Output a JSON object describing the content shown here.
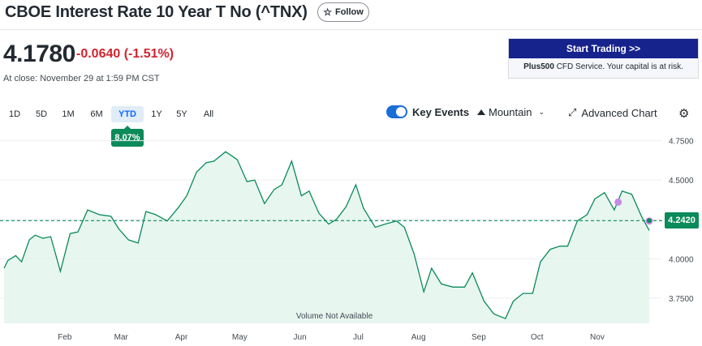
{
  "header": {
    "title": "CBOE Interest Rate 10 Year T No (^TNX)",
    "follow_label": "Follow",
    "price": "4.1780",
    "change": "-0.0640 (-1.51%)",
    "close_note": "At close: November 29 at 1:59 PM CST"
  },
  "ad": {
    "button_label": "Start Trading >>",
    "brand": "Plus500",
    "text": " CFD Service. Your capital is at risk."
  },
  "ranges": [
    {
      "label": "1D",
      "active": false
    },
    {
      "label": "5D",
      "active": false
    },
    {
      "label": "1M",
      "active": false
    },
    {
      "label": "6M",
      "active": false
    },
    {
      "label": "YTD",
      "active": true
    },
    {
      "label": "1Y",
      "active": false
    },
    {
      "label": "5Y",
      "active": false
    },
    {
      "label": "All",
      "active": false
    }
  ],
  "ytd_badge": "8.07%",
  "toolbar": {
    "key_events_label": "Key Events",
    "key_events_on": true,
    "chart_type_label": "Mountain",
    "advanced_label": "Advanced Chart"
  },
  "icons": {
    "follow": "star-icon",
    "chart_type": "mountain-icon",
    "advanced": "expand-icon",
    "settings": "gear-icon"
  },
  "colors": {
    "line": "#0b8a5a",
    "fill": "#e3f4ec",
    "negative": "#d1242f",
    "event_marker": "#c58ae6",
    "ad_button": "#17238c"
  },
  "chart_data": {
    "type": "area",
    "xlabel": "",
    "ylabel": "",
    "x_ticks": [
      "Feb",
      "Mar",
      "Apr",
      "May",
      "Jun",
      "Jul",
      "Aug",
      "Sep",
      "Oct",
      "Nov"
    ],
    "y_ticks": [
      4.75,
      4.5,
      4.25,
      4.0,
      3.75
    ],
    "y_tick_labels": [
      "4.7500",
      "4.5000",
      "4.2500",
      "4.0000",
      "3.7500"
    ],
    "ylim": [
      3.59,
      4.82
    ],
    "reference_value": 4.242,
    "reference_label": "4.2420",
    "note": "Volume Not Available",
    "grid": true,
    "series": [
      {
        "dates": [
          "2024-01-02",
          "2024-01-04",
          "2024-01-08",
          "2024-01-11",
          "2024-01-15",
          "2024-01-18",
          "2024-01-22",
          "2024-01-26",
          "2024-01-31",
          "2024-02-05",
          "2024-02-09",
          "2024-02-14",
          "2024-02-20",
          "2024-02-26",
          "2024-03-01",
          "2024-03-06",
          "2024-03-11",
          "2024-03-15",
          "2024-03-20",
          "2024-03-26",
          "2024-04-01",
          "2024-04-05",
          "2024-04-10",
          "2024-04-15",
          "2024-04-19",
          "2024-04-25",
          "2024-05-01",
          "2024-05-06",
          "2024-05-10",
          "2024-05-15",
          "2024-05-20",
          "2024-05-24",
          "2024-05-29",
          "2024-06-03",
          "2024-06-07",
          "2024-06-12",
          "2024-06-17",
          "2024-06-21",
          "2024-06-26",
          "2024-07-01",
          "2024-07-05",
          "2024-07-11",
          "2024-07-16",
          "2024-07-22",
          "2024-07-26",
          "2024-07-31",
          "2024-08-05",
          "2024-08-09",
          "2024-08-14",
          "2024-08-20",
          "2024-08-26",
          "2024-08-30",
          "2024-09-05",
          "2024-09-10",
          "2024-09-16",
          "2024-09-20",
          "2024-09-25",
          "2024-09-30",
          "2024-10-04",
          "2024-10-09",
          "2024-10-14",
          "2024-10-18",
          "2024-10-23",
          "2024-10-28",
          "2024-11-01",
          "2024-11-06",
          "2024-11-11",
          "2024-11-15",
          "2024-11-20",
          "2024-11-25",
          "2024-11-29"
        ],
        "values": [
          3.94,
          3.99,
          4.02,
          3.98,
          4.12,
          4.15,
          4.13,
          4.14,
          3.92,
          4.16,
          4.17,
          4.31,
          4.28,
          4.27,
          4.19,
          4.12,
          4.1,
          4.3,
          4.28,
          4.24,
          4.33,
          4.4,
          4.55,
          4.61,
          4.62,
          4.68,
          4.63,
          4.49,
          4.5,
          4.35,
          4.44,
          4.47,
          4.62,
          4.4,
          4.43,
          4.29,
          4.22,
          4.25,
          4.33,
          4.47,
          4.32,
          4.2,
          4.22,
          4.24,
          4.2,
          4.03,
          3.79,
          3.94,
          3.84,
          3.82,
          3.82,
          3.91,
          3.73,
          3.65,
          3.62,
          3.73,
          3.78,
          3.78,
          3.98,
          4.06,
          4.08,
          4.08,
          4.24,
          4.28,
          4.38,
          4.42,
          4.31,
          4.43,
          4.41,
          4.27,
          4.18
        ]
      }
    ],
    "events": [
      {
        "date": "2024-11-13",
        "value": 4.36
      },
      {
        "date": "2024-11-29",
        "value": 4.24
      }
    ]
  }
}
